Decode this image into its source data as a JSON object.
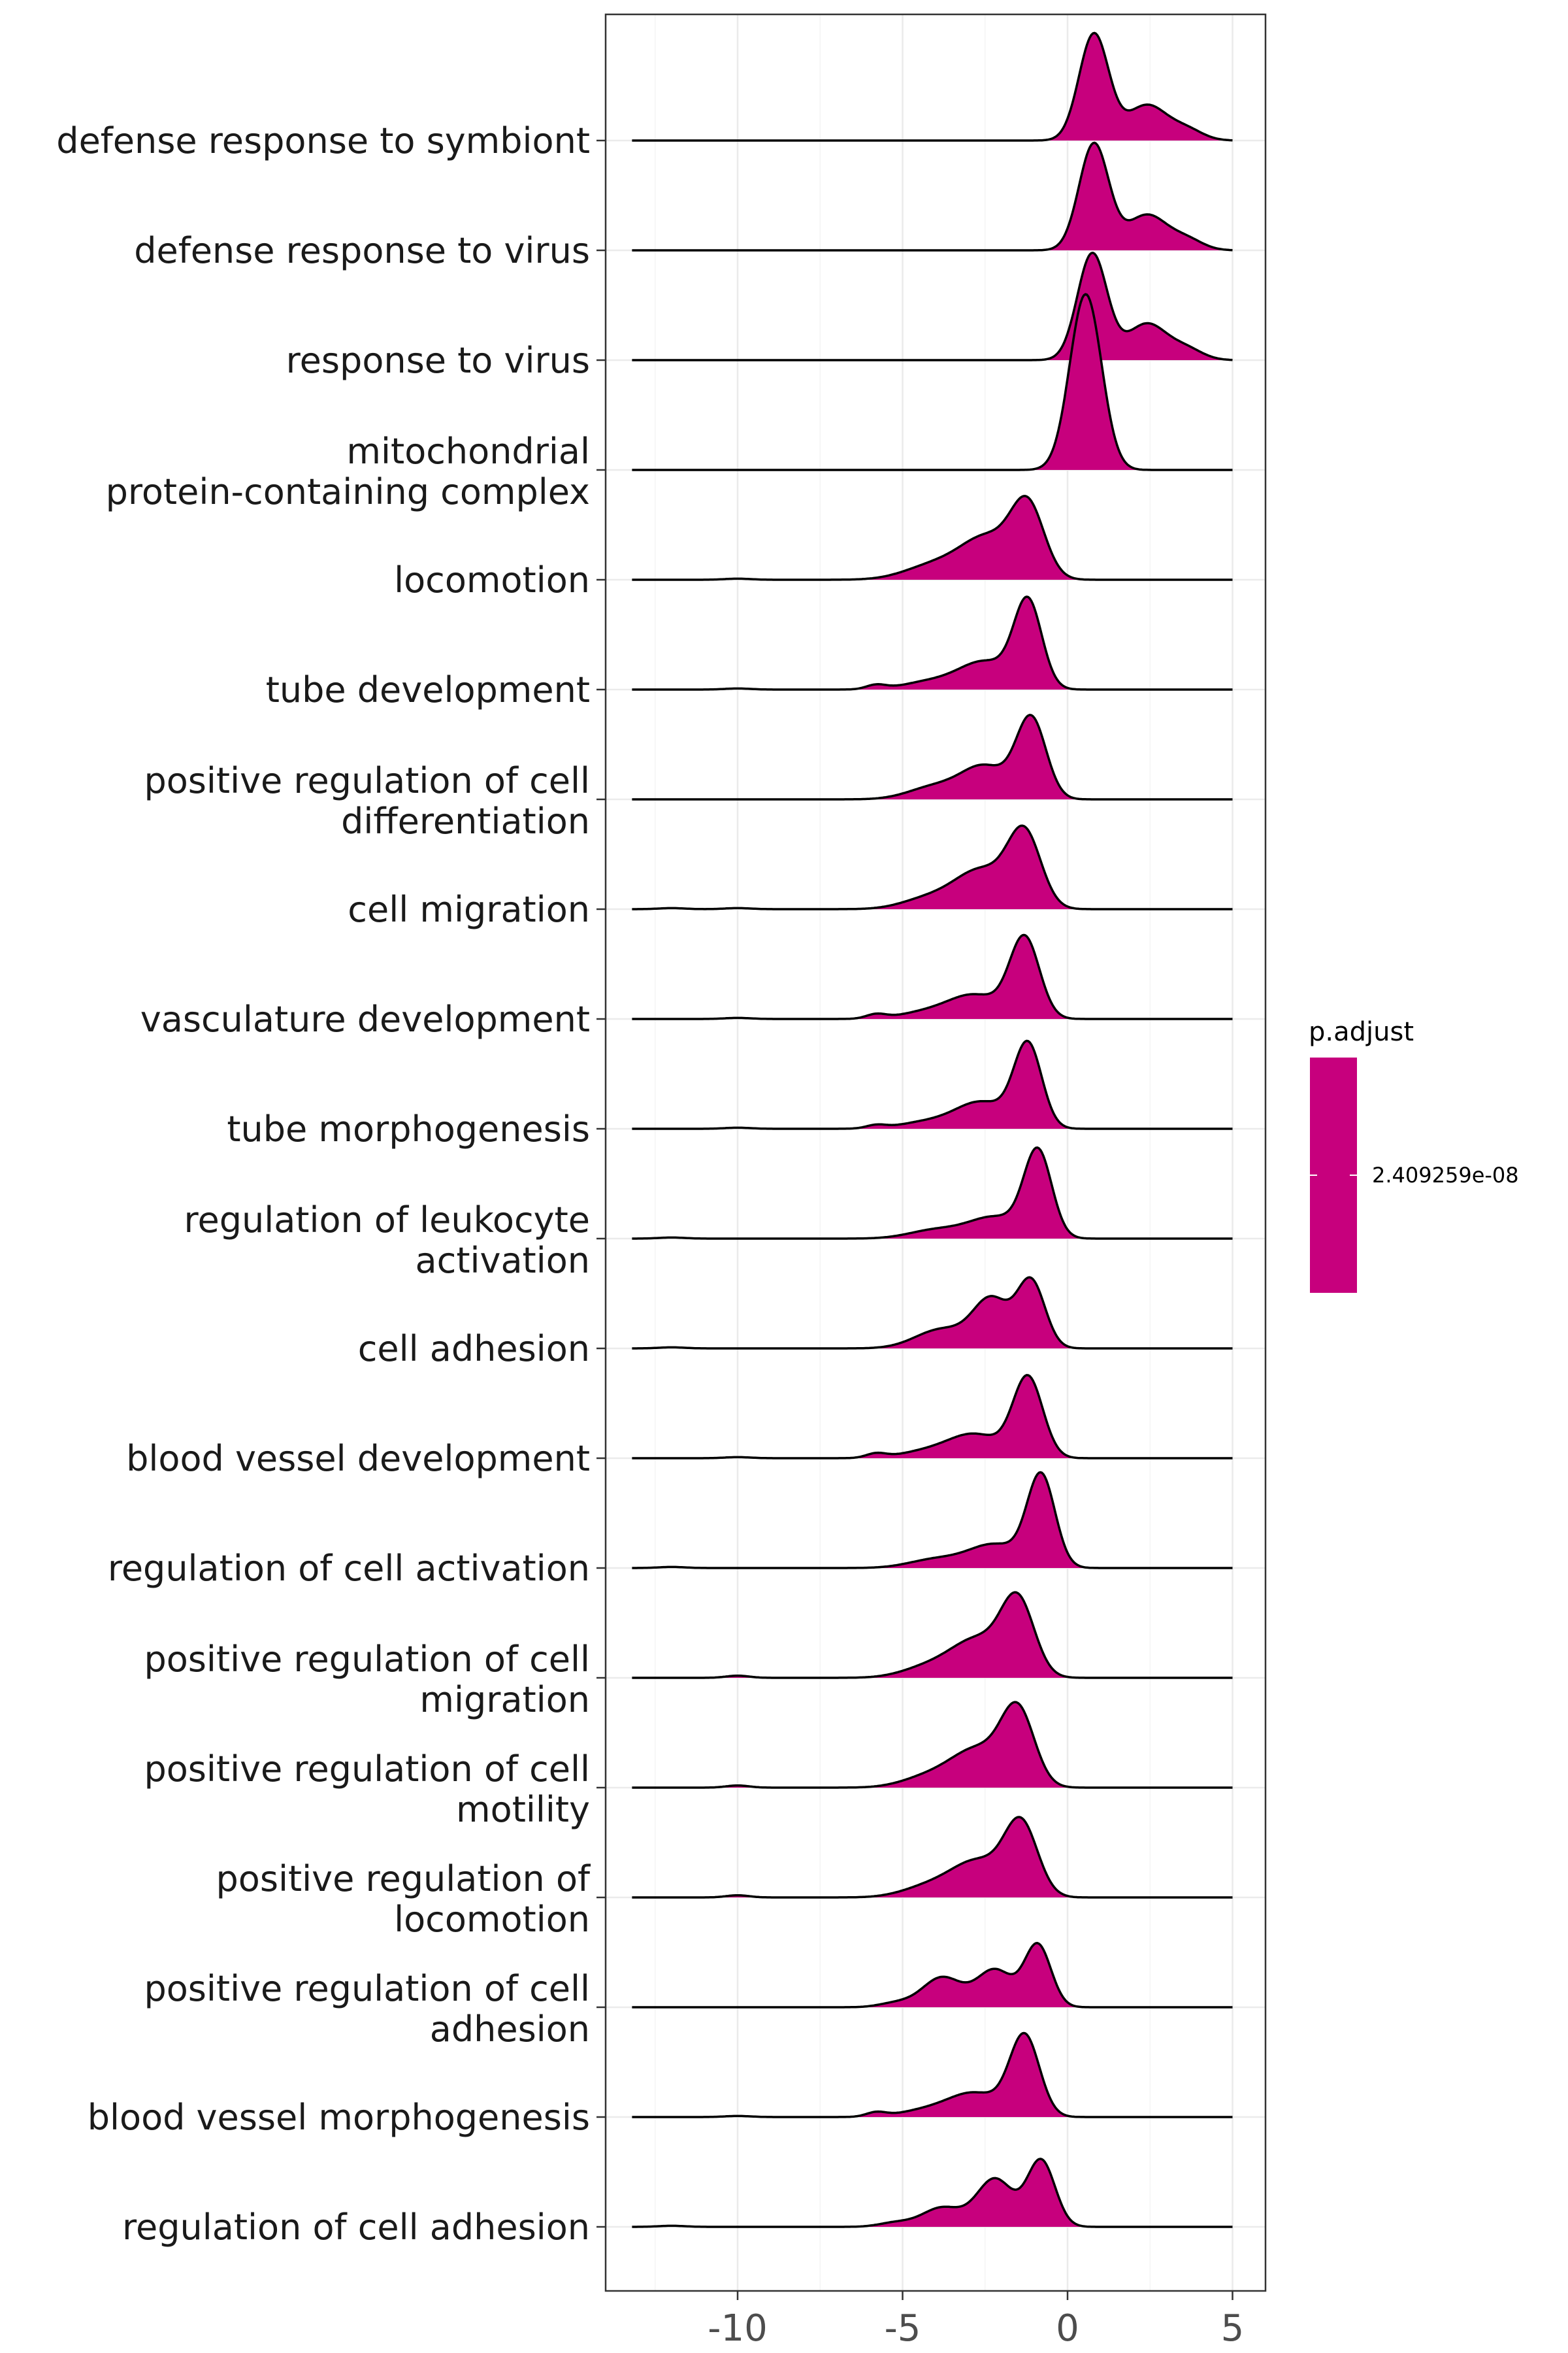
{
  "chart_data": {
    "type": "ridgeline",
    "x_range": [
      -14,
      6
    ],
    "x_ticks": [
      -10,
      -5,
      0,
      5
    ],
    "x_tick_labels": [
      "-10",
      "-5",
      "0",
      "5"
    ],
    "grid": true,
    "fill_color": "#C7007D",
    "legend": {
      "title": "p.adjust",
      "placement": "right",
      "value_label": "2.409259e-08"
    },
    "ridges": [
      {
        "label": [
          "defense response to symbiont"
        ],
        "x_start": -13.2,
        "x_end": 5,
        "peaks": [
          [
            0.8,
            1.0,
            0.45
          ],
          [
            2.4,
            0.33,
            0.6
          ],
          [
            3.6,
            0.1,
            0.5
          ]
        ]
      },
      {
        "label": [
          "defense response to virus"
        ],
        "x_start": -13.2,
        "x_end": 5,
        "peaks": [
          [
            0.8,
            1.0,
            0.45
          ],
          [
            2.4,
            0.33,
            0.6
          ],
          [
            3.6,
            0.1,
            0.5
          ]
        ]
      },
      {
        "label": [
          "response to virus"
        ],
        "x_start": -13.2,
        "x_end": 5,
        "peaks": [
          [
            0.75,
            1.0,
            0.45
          ],
          [
            2.4,
            0.34,
            0.6
          ],
          [
            3.6,
            0.1,
            0.5
          ]
        ]
      },
      {
        "label": [
          "mitochondrial",
          "protein-containing complex"
        ],
        "x_start": -13.2,
        "x_end": 5,
        "peaks": [
          [
            0.55,
            1.65,
            0.48
          ]
        ]
      },
      {
        "label": [
          "locomotion"
        ],
        "x_start": -13.2,
        "x_end": 5,
        "peaks": [
          [
            -1.2,
            0.65,
            0.5
          ],
          [
            -2.4,
            0.38,
            0.8
          ],
          [
            -4.0,
            0.14,
            0.9
          ],
          [
            -10.0,
            0.01,
            0.4
          ]
        ]
      },
      {
        "label": [
          "tube development"
        ],
        "x_start": -13.2,
        "x_end": 5,
        "peaks": [
          [
            -1.2,
            0.8,
            0.42
          ],
          [
            -2.5,
            0.26,
            0.8
          ],
          [
            -4.2,
            0.07,
            0.8
          ],
          [
            -5.8,
            0.04,
            0.3
          ],
          [
            -10.0,
            0.01,
            0.4
          ]
        ]
      },
      {
        "label": [
          "positive regulation of cell",
          "differentiation"
        ],
        "x_start": -13.2,
        "x_end": 5,
        "peaks": [
          [
            -1.1,
            0.75,
            0.45
          ],
          [
            -2.5,
            0.3,
            0.7
          ],
          [
            -4.0,
            0.12,
            0.8
          ]
        ]
      },
      {
        "label": [
          "cell migration"
        ],
        "x_start": -13.2,
        "x_end": 5,
        "peaks": [
          [
            -1.3,
            0.68,
            0.5
          ],
          [
            -2.6,
            0.36,
            0.8
          ],
          [
            -4.2,
            0.1,
            0.8
          ],
          [
            -10.0,
            0.01,
            0.4
          ],
          [
            -12.0,
            0.01,
            0.4
          ]
        ]
      },
      {
        "label": [
          "vasculature development"
        ],
        "x_start": -13.2,
        "x_end": 5,
        "peaks": [
          [
            -1.3,
            0.75,
            0.45
          ],
          [
            -2.8,
            0.22,
            0.8
          ],
          [
            -4.3,
            0.06,
            0.8
          ],
          [
            -5.8,
            0.04,
            0.3
          ],
          [
            -10.0,
            0.01,
            0.4
          ]
        ]
      },
      {
        "label": [
          "tube morphogenesis"
        ],
        "x_start": -13.2,
        "x_end": 5,
        "peaks": [
          [
            -1.2,
            0.77,
            0.42
          ],
          [
            -2.6,
            0.25,
            0.8
          ],
          [
            -4.3,
            0.06,
            0.8
          ],
          [
            -5.8,
            0.03,
            0.3
          ],
          [
            -10.0,
            0.01,
            0.4
          ]
        ]
      },
      {
        "label": [
          "regulation of leukocyte",
          "activation"
        ],
        "x_start": -13.2,
        "x_end": 5,
        "peaks": [
          [
            -0.9,
            0.8,
            0.42
          ],
          [
            -2.2,
            0.2,
            0.8
          ],
          [
            -4.0,
            0.08,
            0.8
          ],
          [
            -12.0,
            0.01,
            0.4
          ]
        ]
      },
      {
        "label": [
          "cell adhesion"
        ],
        "x_start": -13.2,
        "x_end": 5,
        "peaks": [
          [
            -1.1,
            0.62,
            0.42
          ],
          [
            -2.3,
            0.45,
            0.55
          ],
          [
            -3.8,
            0.18,
            0.8
          ],
          [
            -12.0,
            0.01,
            0.4
          ]
        ]
      },
      {
        "label": [
          "blood vessel development"
        ],
        "x_start": -13.2,
        "x_end": 5,
        "peaks": [
          [
            -1.2,
            0.75,
            0.45
          ],
          [
            -2.8,
            0.22,
            0.8
          ],
          [
            -4.3,
            0.06,
            0.8
          ],
          [
            -5.8,
            0.04,
            0.3
          ],
          [
            -10.0,
            0.01,
            0.4
          ]
        ]
      },
      {
        "label": [
          "regulation of cell activation"
        ],
        "x_start": -13.2,
        "x_end": 5,
        "peaks": [
          [
            -0.8,
            0.85,
            0.42
          ],
          [
            -2.2,
            0.22,
            0.8
          ],
          [
            -4.0,
            0.08,
            0.8
          ],
          [
            -12.0,
            0.01,
            0.4
          ]
        ]
      },
      {
        "label": [
          "positive regulation of cell",
          "migration"
        ],
        "x_start": -13.2,
        "x_end": 5,
        "peaks": [
          [
            -1.5,
            0.68,
            0.5
          ],
          [
            -2.7,
            0.35,
            0.8
          ],
          [
            -4.2,
            0.1,
            0.8
          ],
          [
            -10.0,
            0.02,
            0.35
          ]
        ]
      },
      {
        "label": [
          "positive regulation of cell",
          "motility"
        ],
        "x_start": -13.2,
        "x_end": 5,
        "peaks": [
          [
            -1.5,
            0.68,
            0.5
          ],
          [
            -2.7,
            0.35,
            0.8
          ],
          [
            -4.2,
            0.1,
            0.8
          ],
          [
            -10.0,
            0.02,
            0.35
          ]
        ]
      },
      {
        "label": [
          "positive regulation of",
          "locomotion"
        ],
        "x_start": -13.2,
        "x_end": 5,
        "peaks": [
          [
            -1.4,
            0.66,
            0.5
          ],
          [
            -2.7,
            0.33,
            0.8
          ],
          [
            -4.2,
            0.1,
            0.8
          ],
          [
            -10.0,
            0.02,
            0.35
          ]
        ]
      },
      {
        "label": [
          "positive regulation of cell",
          "adhesion"
        ],
        "x_start": -13.2,
        "x_end": 5,
        "peaks": [
          [
            -0.9,
            0.58,
            0.4
          ],
          [
            -2.2,
            0.35,
            0.55
          ],
          [
            -3.8,
            0.28,
            0.6
          ],
          [
            -5.2,
            0.04,
            0.5
          ]
        ]
      },
      {
        "label": [
          "blood vessel morphogenesis"
        ],
        "x_start": -13.2,
        "x_end": 5,
        "peaks": [
          [
            -1.3,
            0.75,
            0.45
          ],
          [
            -2.8,
            0.22,
            0.8
          ],
          [
            -4.3,
            0.06,
            0.8
          ],
          [
            -5.8,
            0.04,
            0.3
          ],
          [
            -10.0,
            0.01,
            0.4
          ]
        ]
      },
      {
        "label": [
          "regulation of cell adhesion"
        ],
        "x_start": -13.2,
        "x_end": 5,
        "peaks": [
          [
            -0.8,
            0.62,
            0.42
          ],
          [
            -2.2,
            0.45,
            0.55
          ],
          [
            -3.8,
            0.18,
            0.6
          ],
          [
            -5.2,
            0.04,
            0.5
          ],
          [
            -12.0,
            0.01,
            0.4
          ]
        ]
      }
    ]
  }
}
